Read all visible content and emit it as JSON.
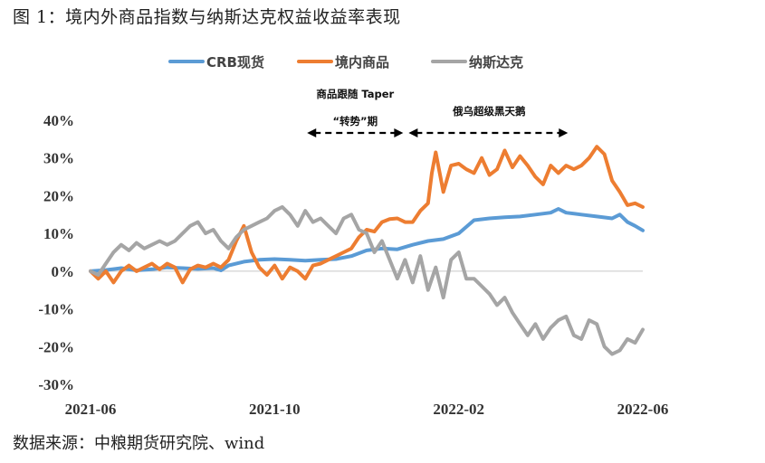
{
  "figure": {
    "title": "图 1：境内外商品指数与纳斯达克权益收益率表现",
    "source": "数据来源：中粮期货研究院、wind"
  },
  "chart_data": {
    "type": "line",
    "title": "境内外商品指数与纳斯达克权益收益率表现",
    "xlabel": "",
    "ylabel": "",
    "ylim": [
      -30,
      40
    ],
    "y_ticks": [
      -30,
      -20,
      -10,
      0,
      10,
      20,
      30,
      40
    ],
    "y_tick_labels": [
      "-30%",
      "-20%",
      "-10%",
      "0%",
      "10%",
      "20%",
      "30%",
      "40%"
    ],
    "x_tick_labels": [
      "2021-06",
      "2021-10",
      "2022-02",
      "2022-06"
    ],
    "legend_position": "top-center",
    "series": [
      {
        "name": "CRB现货",
        "color": "#5b9bd5",
        "points": [
          [
            0,
            0
          ],
          [
            2,
            0.3
          ],
          [
            4,
            0.8
          ],
          [
            6,
            0.2
          ],
          [
            8,
            0.5
          ],
          [
            10,
            1
          ],
          [
            12,
            0.8
          ],
          [
            14,
            0.6
          ],
          [
            16,
            0.8
          ],
          [
            17,
            0.2
          ],
          [
            18,
            1.5
          ],
          [
            20,
            2.5
          ],
          [
            22,
            3
          ],
          [
            24,
            3.2
          ],
          [
            26,
            3
          ],
          [
            28,
            2.8
          ],
          [
            30,
            3
          ],
          [
            32,
            3.2
          ],
          [
            34,
            4
          ],
          [
            36,
            5.5
          ],
          [
            38,
            6
          ],
          [
            40,
            5.8
          ],
          [
            42,
            7
          ],
          [
            44,
            8
          ],
          [
            46,
            8.5
          ],
          [
            48,
            10
          ],
          [
            50,
            13.5
          ],
          [
            52,
            14
          ],
          [
            54,
            14.3
          ],
          [
            56,
            14.5
          ],
          [
            58,
            15
          ],
          [
            60,
            15.5
          ],
          [
            61,
            16.5
          ],
          [
            62,
            15.5
          ],
          [
            64,
            15
          ],
          [
            66,
            14.5
          ],
          [
            68,
            14
          ],
          [
            69,
            15
          ],
          [
            70,
            13
          ],
          [
            71,
            12
          ],
          [
            72,
            10.8
          ]
        ]
      },
      {
        "name": "境内商品",
        "color": "#ed7d31",
        "points": [
          [
            0,
            0
          ],
          [
            1,
            -2
          ],
          [
            2,
            0
          ],
          [
            3,
            -3
          ],
          [
            4,
            0
          ],
          [
            5,
            1.5
          ],
          [
            6,
            0
          ],
          [
            7,
            1
          ],
          [
            8,
            2
          ],
          [
            9,
            0.5
          ],
          [
            10,
            2
          ],
          [
            11,
            1
          ],
          [
            12,
            -3
          ],
          [
            13,
            0.5
          ],
          [
            14,
            1.5
          ],
          [
            15,
            1
          ],
          [
            16,
            2
          ],
          [
            17,
            1
          ],
          [
            18,
            3
          ],
          [
            19,
            8
          ],
          [
            20,
            12
          ],
          [
            21,
            5
          ],
          [
            22,
            1
          ],
          [
            23,
            -1
          ],
          [
            24,
            1.5
          ],
          [
            25,
            -2
          ],
          [
            26,
            1
          ],
          [
            27,
            0
          ],
          [
            28,
            -2
          ],
          [
            29,
            1.5
          ],
          [
            30,
            2
          ],
          [
            31,
            3
          ],
          [
            32,
            4
          ],
          [
            33,
            5
          ],
          [
            34,
            6
          ],
          [
            35,
            9
          ],
          [
            36,
            11
          ],
          [
            37,
            10.5
          ],
          [
            38,
            13
          ],
          [
            39,
            13.8
          ],
          [
            40,
            14
          ],
          [
            41,
            13
          ],
          [
            42,
            13
          ],
          [
            43,
            16
          ],
          [
            44,
            18
          ],
          [
            44.5,
            26
          ],
          [
            45,
            31.5
          ],
          [
            46,
            21
          ],
          [
            47,
            28
          ],
          [
            48,
            28.5
          ],
          [
            49,
            27
          ],
          [
            50,
            26
          ],
          [
            51,
            30
          ],
          [
            52,
            25.5
          ],
          [
            53,
            27
          ],
          [
            54,
            32
          ],
          [
            55,
            27.5
          ],
          [
            56,
            30.5
          ],
          [
            57,
            28
          ],
          [
            58,
            25
          ],
          [
            59,
            23
          ],
          [
            60,
            28
          ],
          [
            61,
            26
          ],
          [
            62,
            28
          ],
          [
            63,
            27
          ],
          [
            64,
            28
          ],
          [
            65,
            30
          ],
          [
            66,
            33
          ],
          [
            67,
            31
          ],
          [
            68,
            24
          ],
          [
            69,
            21
          ],
          [
            70,
            17.5
          ],
          [
            71,
            18
          ],
          [
            72,
            17
          ]
        ]
      },
      {
        "name": "纳斯达克",
        "color": "#a5a5a5",
        "points": [
          [
            0,
            0
          ],
          [
            1,
            -1
          ],
          [
            2,
            2
          ],
          [
            3,
            5
          ],
          [
            4,
            7
          ],
          [
            5,
            5.5
          ],
          [
            6,
            7.5
          ],
          [
            7,
            6
          ],
          [
            8,
            7
          ],
          [
            9,
            8
          ],
          [
            10,
            7
          ],
          [
            11,
            8
          ],
          [
            12,
            10
          ],
          [
            13,
            12
          ],
          [
            14,
            13
          ],
          [
            15,
            10
          ],
          [
            16,
            11
          ],
          [
            17,
            8
          ],
          [
            18,
            6
          ],
          [
            19,
            9
          ],
          [
            20,
            11
          ],
          [
            21,
            12
          ],
          [
            22,
            13
          ],
          [
            23,
            14
          ],
          [
            24,
            16
          ],
          [
            25,
            17
          ],
          [
            26,
            15
          ],
          [
            27,
            12
          ],
          [
            28,
            16
          ],
          [
            29,
            13
          ],
          [
            30,
            14
          ],
          [
            31,
            12
          ],
          [
            32,
            10
          ],
          [
            33,
            14
          ],
          [
            34,
            15
          ],
          [
            35,
            11
          ],
          [
            36,
            10
          ],
          [
            37,
            5
          ],
          [
            38,
            8
          ],
          [
            39,
            3
          ],
          [
            40,
            -2
          ],
          [
            41,
            3
          ],
          [
            42,
            -3
          ],
          [
            43,
            4
          ],
          [
            44,
            -5
          ],
          [
            45,
            1
          ],
          [
            46,
            -7
          ],
          [
            47,
            3
          ],
          [
            48,
            5
          ],
          [
            49,
            -2
          ],
          [
            50,
            -2
          ],
          [
            51,
            -4
          ],
          [
            52,
            -6
          ],
          [
            53,
            -9
          ],
          [
            54,
            -7
          ],
          [
            55,
            -11
          ],
          [
            56,
            -14
          ],
          [
            57,
            -17
          ],
          [
            58,
            -14
          ],
          [
            59,
            -18
          ],
          [
            60,
            -15
          ],
          [
            61,
            -13
          ],
          [
            62,
            -12
          ],
          [
            63,
            -17
          ],
          [
            64,
            -18
          ],
          [
            65,
            -13
          ],
          [
            66,
            -14
          ],
          [
            67,
            -20
          ],
          [
            68,
            -22
          ],
          [
            69,
            -21
          ],
          [
            70,
            -18
          ],
          [
            71,
            -19
          ],
          [
            72,
            -15.5
          ]
        ]
      }
    ],
    "annotations": [
      {
        "line1": "商品跟随 Taper",
        "line2": "“转势”期",
        "x_from": 28,
        "x_to": 41
      },
      {
        "line1": "俄乌超级黑天鹅",
        "x_from": 41,
        "x_to": 62
      }
    ]
  }
}
